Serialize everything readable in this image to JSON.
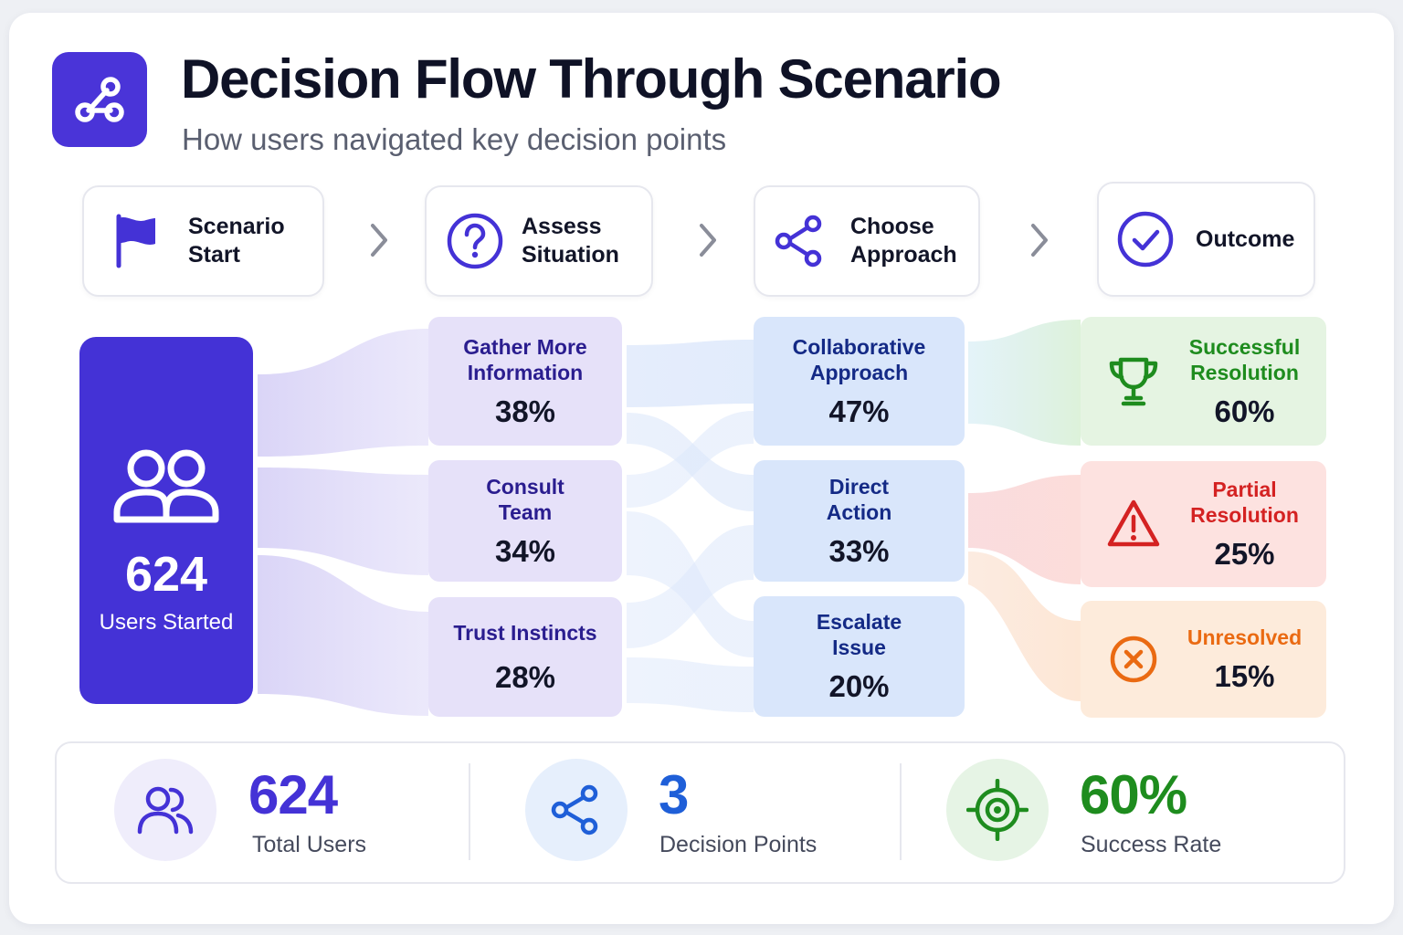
{
  "header": {
    "title": "Decision Flow Through Scenario",
    "subtitle": "How users navigated key decision points",
    "logo_icon": "share-nodes-icon"
  },
  "stages": [
    {
      "label": "Scenario\nStart",
      "icon": "flag-icon"
    },
    {
      "label": "Assess\nSituation",
      "icon": "question-circle-icon"
    },
    {
      "label": "Choose\nApproach",
      "icon": "share-nodes-icon"
    },
    {
      "label": "Outcome",
      "icon": "check-circle-icon"
    }
  ],
  "start": {
    "value": "624",
    "label": "Users Started",
    "icon": "users-icon"
  },
  "assess_options": [
    {
      "label": "Gather More\nInformation",
      "percent": "38%",
      "share": 0.38
    },
    {
      "label": "Consult\nTeam",
      "percent": "34%",
      "share": 0.34
    },
    {
      "label": "Trust Instincts",
      "percent": "28%",
      "share": 0.28
    }
  ],
  "approach_options": [
    {
      "label": "Collaborative\nApproach",
      "percent": "47%",
      "share": 0.47
    },
    {
      "label": "Direct\nAction",
      "percent": "33%",
      "share": 0.33
    },
    {
      "label": "Escalate\nIssue",
      "percent": "20%",
      "share": 0.2
    }
  ],
  "outcomes": [
    {
      "label": "Successful\nResolution",
      "percent": "60%",
      "share": 0.6,
      "icon": "trophy-icon",
      "color": "#1e8c1e",
      "bg": "#e5f4e2"
    },
    {
      "label": "Partial\nResolution",
      "percent": "25%",
      "share": 0.25,
      "icon": "warning-icon",
      "color": "#d42222",
      "bg": "#fde2e0"
    },
    {
      "label": "Unresolved",
      "percent": "15%",
      "share": 0.15,
      "icon": "x-circle-icon",
      "color": "#ea6a12",
      "bg": "#fdebdb"
    }
  ],
  "stats": [
    {
      "value": "624",
      "label": "Total Users",
      "icon": "users-icon",
      "color": "#4432d6",
      "bg": "#efedfb"
    },
    {
      "value": "3",
      "label": "Decision Points",
      "icon": "share-nodes-icon",
      "color": "#1f5fd8",
      "bg": "#e6effc"
    },
    {
      "value": "60%",
      "label": "Success Rate",
      "icon": "target-icon",
      "color": "#1e8c1e",
      "bg": "#e6f4e5"
    }
  ],
  "colors": {
    "primary": "#4432d6",
    "assess_bg": "#e6e1f9",
    "approach_bg": "#d9e6fb"
  }
}
